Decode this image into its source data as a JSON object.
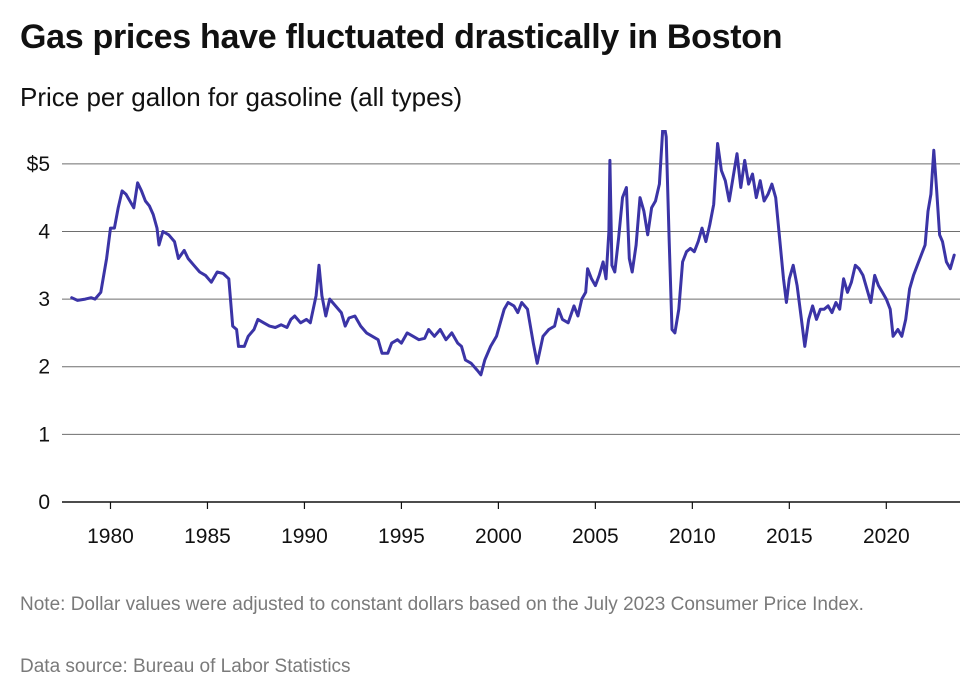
{
  "title": "Gas prices have fluctuated drastically in Boston",
  "subtitle": "Price per gallon for gasoline (all types)",
  "note": "Note: Dollar values were adjusted to constant dollars based on the July 2023 Consumer Price Index.",
  "source": "Data source: Bureau of Labor Statistics",
  "colors": {
    "line": "#3b34a6",
    "grid": "#6e6e6e",
    "axis": "#111111"
  },
  "chart_data": {
    "type": "line",
    "title": "Gas prices have fluctuated drastically in Boston",
    "xlabel": "",
    "ylabel": "",
    "xlim": [
      1977.5,
      2023.8
    ],
    "ylim": [
      0,
      5.5
    ],
    "grid": true,
    "x_ticks": [
      1980,
      1985,
      1990,
      1995,
      2000,
      2005,
      2010,
      2015,
      2020
    ],
    "x_tick_labels": [
      "1980",
      "1985",
      "1990",
      "1995",
      "2000",
      "2005",
      "2010",
      "2015",
      "2020"
    ],
    "y_ticks": [
      0,
      1,
      2,
      3,
      4,
      5
    ],
    "y_tick_labels": [
      "0",
      "1",
      "2",
      "3",
      "4",
      "$5"
    ],
    "series": [
      {
        "points": [
          [
            1978.0,
            3.02
          ],
          [
            1978.3,
            2.98
          ],
          [
            1978.7,
            3.0
          ],
          [
            1979.0,
            3.02
          ],
          [
            1979.2,
            3.0
          ],
          [
            1979.5,
            3.1
          ],
          [
            1979.8,
            3.6
          ],
          [
            1980.0,
            4.05
          ],
          [
            1980.2,
            4.05
          ],
          [
            1980.4,
            4.35
          ],
          [
            1980.6,
            4.6
          ],
          [
            1980.8,
            4.55
          ],
          [
            1981.0,
            4.45
          ],
          [
            1981.2,
            4.35
          ],
          [
            1981.4,
            4.72
          ],
          [
            1981.6,
            4.6
          ],
          [
            1981.8,
            4.45
          ],
          [
            1982.0,
            4.38
          ],
          [
            1982.2,
            4.25
          ],
          [
            1982.4,
            4.05
          ],
          [
            1982.5,
            3.8
          ],
          [
            1982.7,
            4.0
          ],
          [
            1983.0,
            3.95
          ],
          [
            1983.3,
            3.85
          ],
          [
            1983.5,
            3.6
          ],
          [
            1983.8,
            3.72
          ],
          [
            1984.0,
            3.6
          ],
          [
            1984.3,
            3.5
          ],
          [
            1984.6,
            3.4
          ],
          [
            1984.9,
            3.35
          ],
          [
            1985.2,
            3.25
          ],
          [
            1985.5,
            3.4
          ],
          [
            1985.8,
            3.38
          ],
          [
            1986.1,
            3.3
          ],
          [
            1986.3,
            2.6
          ],
          [
            1986.5,
            2.55
          ],
          [
            1986.6,
            2.3
          ],
          [
            1986.9,
            2.3
          ],
          [
            1987.1,
            2.45
          ],
          [
            1987.4,
            2.55
          ],
          [
            1987.6,
            2.7
          ],
          [
            1987.9,
            2.65
          ],
          [
            1988.2,
            2.6
          ],
          [
            1988.5,
            2.58
          ],
          [
            1988.8,
            2.62
          ],
          [
            1989.1,
            2.58
          ],
          [
            1989.3,
            2.7
          ],
          [
            1989.5,
            2.75
          ],
          [
            1989.8,
            2.65
          ],
          [
            1990.1,
            2.7
          ],
          [
            1990.3,
            2.65
          ],
          [
            1990.6,
            3.05
          ],
          [
            1990.75,
            3.5
          ],
          [
            1990.9,
            3.05
          ],
          [
            1991.1,
            2.75
          ],
          [
            1991.3,
            3.0
          ],
          [
            1991.6,
            2.9
          ],
          [
            1991.9,
            2.8
          ],
          [
            1992.1,
            2.6
          ],
          [
            1992.3,
            2.72
          ],
          [
            1992.6,
            2.75
          ],
          [
            1992.9,
            2.6
          ],
          [
            1993.2,
            2.5
          ],
          [
            1993.5,
            2.45
          ],
          [
            1993.8,
            2.4
          ],
          [
            1994.0,
            2.2
          ],
          [
            1994.3,
            2.2
          ],
          [
            1994.5,
            2.35
          ],
          [
            1994.8,
            2.4
          ],
          [
            1995.0,
            2.35
          ],
          [
            1995.3,
            2.5
          ],
          [
            1995.6,
            2.45
          ],
          [
            1995.9,
            2.4
          ],
          [
            1996.2,
            2.42
          ],
          [
            1996.4,
            2.55
          ],
          [
            1996.7,
            2.45
          ],
          [
            1997.0,
            2.55
          ],
          [
            1997.3,
            2.4
          ],
          [
            1997.6,
            2.5
          ],
          [
            1997.9,
            2.35
          ],
          [
            1998.1,
            2.3
          ],
          [
            1998.3,
            2.1
          ],
          [
            1998.6,
            2.05
          ],
          [
            1998.9,
            1.95
          ],
          [
            1999.1,
            1.88
          ],
          [
            1999.3,
            2.1
          ],
          [
            1999.6,
            2.3
          ],
          [
            1999.9,
            2.45
          ],
          [
            2000.1,
            2.65
          ],
          [
            2000.3,
            2.85
          ],
          [
            2000.5,
            2.95
          ],
          [
            2000.8,
            2.9
          ],
          [
            2001.0,
            2.8
          ],
          [
            2001.2,
            2.95
          ],
          [
            2001.5,
            2.85
          ],
          [
            2001.8,
            2.35
          ],
          [
            2002.0,
            2.05
          ],
          [
            2002.3,
            2.45
          ],
          [
            2002.6,
            2.55
          ],
          [
            2002.9,
            2.6
          ],
          [
            2003.1,
            2.85
          ],
          [
            2003.3,
            2.7
          ],
          [
            2003.6,
            2.65
          ],
          [
            2003.9,
            2.9
          ],
          [
            2004.1,
            2.75
          ],
          [
            2004.3,
            3.0
          ],
          [
            2004.5,
            3.1
          ],
          [
            2004.6,
            3.45
          ],
          [
            2004.8,
            3.3
          ],
          [
            2005.0,
            3.2
          ],
          [
            2005.2,
            3.35
          ],
          [
            2005.4,
            3.55
          ],
          [
            2005.55,
            3.3
          ],
          [
            2005.7,
            4.0
          ],
          [
            2005.75,
            5.05
          ],
          [
            2005.85,
            3.5
          ],
          [
            2006.0,
            3.4
          ],
          [
            2006.2,
            3.9
          ],
          [
            2006.4,
            4.5
          ],
          [
            2006.6,
            4.65
          ],
          [
            2006.75,
            3.6
          ],
          [
            2006.9,
            3.4
          ],
          [
            2007.1,
            3.8
          ],
          [
            2007.3,
            4.5
          ],
          [
            2007.5,
            4.3
          ],
          [
            2007.7,
            3.95
          ],
          [
            2007.9,
            4.35
          ],
          [
            2008.1,
            4.45
          ],
          [
            2008.3,
            4.7
          ],
          [
            2008.5,
            5.65
          ],
          [
            2008.65,
            5.4
          ],
          [
            2008.8,
            3.9
          ],
          [
            2008.95,
            2.55
          ],
          [
            2009.1,
            2.5
          ],
          [
            2009.3,
            2.85
          ],
          [
            2009.5,
            3.55
          ],
          [
            2009.7,
            3.7
          ],
          [
            2009.9,
            3.75
          ],
          [
            2010.1,
            3.7
          ],
          [
            2010.3,
            3.85
          ],
          [
            2010.5,
            4.05
          ],
          [
            2010.7,
            3.85
          ],
          [
            2010.9,
            4.1
          ],
          [
            2011.1,
            4.4
          ],
          [
            2011.3,
            5.3
          ],
          [
            2011.5,
            4.9
          ],
          [
            2011.7,
            4.75
          ],
          [
            2011.9,
            4.45
          ],
          [
            2012.1,
            4.8
          ],
          [
            2012.3,
            5.15
          ],
          [
            2012.5,
            4.65
          ],
          [
            2012.7,
            5.05
          ],
          [
            2012.9,
            4.7
          ],
          [
            2013.1,
            4.85
          ],
          [
            2013.3,
            4.5
          ],
          [
            2013.5,
            4.75
          ],
          [
            2013.7,
            4.45
          ],
          [
            2013.9,
            4.55
          ],
          [
            2014.1,
            4.7
          ],
          [
            2014.3,
            4.5
          ],
          [
            2014.5,
            3.9
          ],
          [
            2014.7,
            3.3
          ],
          [
            2014.85,
            2.95
          ],
          [
            2015.0,
            3.3
          ],
          [
            2015.2,
            3.5
          ],
          [
            2015.4,
            3.2
          ],
          [
            2015.6,
            2.75
          ],
          [
            2015.8,
            2.3
          ],
          [
            2016.0,
            2.7
          ],
          [
            2016.2,
            2.9
          ],
          [
            2016.4,
            2.7
          ],
          [
            2016.6,
            2.85
          ],
          [
            2016.8,
            2.85
          ],
          [
            2017.0,
            2.9
          ],
          [
            2017.2,
            2.8
          ],
          [
            2017.4,
            2.95
          ],
          [
            2017.6,
            2.85
          ],
          [
            2017.8,
            3.3
          ],
          [
            2018.0,
            3.1
          ],
          [
            2018.2,
            3.25
          ],
          [
            2018.4,
            3.5
          ],
          [
            2018.6,
            3.45
          ],
          [
            2018.8,
            3.35
          ],
          [
            2019.0,
            3.15
          ],
          [
            2019.2,
            2.95
          ],
          [
            2019.4,
            3.35
          ],
          [
            2019.6,
            3.2
          ],
          [
            2019.8,
            3.1
          ],
          [
            2020.0,
            3.0
          ],
          [
            2020.2,
            2.85
          ],
          [
            2020.35,
            2.45
          ],
          [
            2020.6,
            2.55
          ],
          [
            2020.8,
            2.45
          ],
          [
            2021.0,
            2.7
          ],
          [
            2021.2,
            3.15
          ],
          [
            2021.4,
            3.35
          ],
          [
            2021.6,
            3.5
          ],
          [
            2021.8,
            3.65
          ],
          [
            2022.0,
            3.8
          ],
          [
            2022.15,
            4.3
          ],
          [
            2022.3,
            4.55
          ],
          [
            2022.45,
            5.2
          ],
          [
            2022.6,
            4.6
          ],
          [
            2022.75,
            3.95
          ],
          [
            2022.9,
            3.85
          ],
          [
            2023.1,
            3.55
          ],
          [
            2023.3,
            3.45
          ],
          [
            2023.5,
            3.65
          ]
        ]
      }
    ]
  }
}
